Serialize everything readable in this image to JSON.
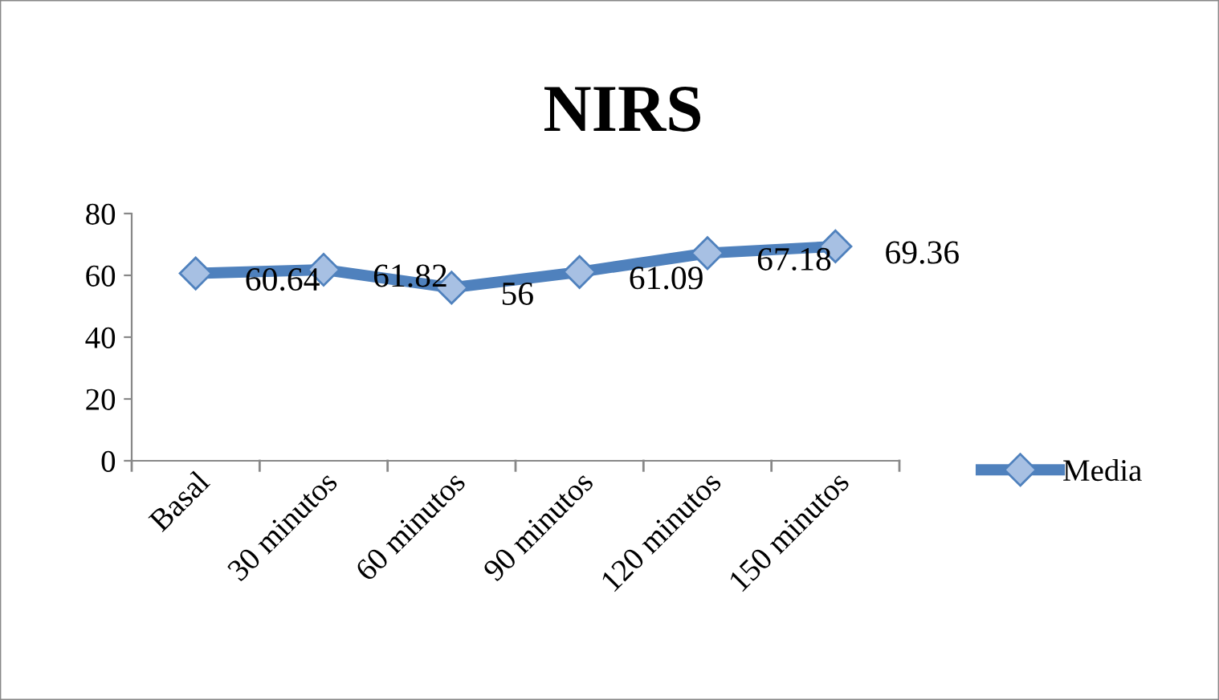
{
  "chart_data": {
    "type": "line",
    "title": "NIRS",
    "categories": [
      "Basal",
      "30 minutos",
      "60 minutos",
      "90 minutos",
      "120 minutos",
      "150 minutos"
    ],
    "series": [
      {
        "name": "Media",
        "color": "#4f81bd",
        "values": [
          60.64,
          61.82,
          56,
          61.09,
          67.18,
          69.36
        ]
      }
    ],
    "ylim": [
      0,
      80
    ],
    "yticks": [
      0,
      20,
      40,
      60,
      80
    ],
    "grid": false,
    "legend": "right",
    "marker": "diamond",
    "line_style": "solid",
    "data_labels": true
  }
}
